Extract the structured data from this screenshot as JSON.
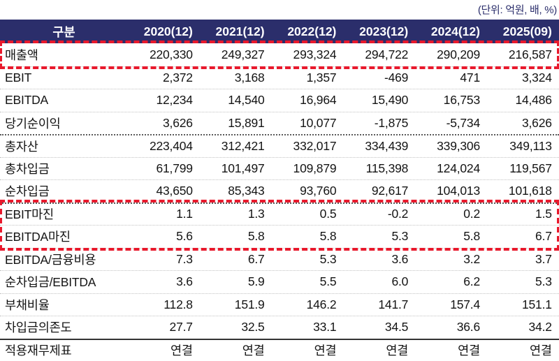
{
  "unit_label": "(단위: 억원, 배, %)",
  "colors": {
    "header_bg": "#2b2e6b",
    "header_text": "#ffffff",
    "highlight_red": "#e8192c",
    "body_text": "#141414"
  },
  "table": {
    "header": [
      "구분",
      "2020(12)",
      "2021(12)",
      "2022(12)",
      "2023(12)",
      "2024(12)",
      "2025(09)"
    ],
    "rows": [
      {
        "label": "매출액",
        "values": [
          "220,330",
          "249,327",
          "293,324",
          "294,722",
          "290,209",
          "216,587"
        ],
        "highlight": "box-1"
      },
      {
        "label": "EBIT",
        "values": [
          "2,372",
          "3,168",
          "1,357",
          "-469",
          "471",
          "3,324"
        ]
      },
      {
        "label": "EBITDA",
        "values": [
          "12,234",
          "14,540",
          "16,964",
          "15,490",
          "16,753",
          "14,486"
        ]
      },
      {
        "label": "당기순이익",
        "values": [
          "3,626",
          "15,891",
          "10,077",
          "-1,875",
          "-5,734",
          "3,626"
        ]
      },
      {
        "label": "총자산",
        "values": [
          "223,404",
          "312,421",
          "332,017",
          "334,439",
          "339,306",
          "349,113"
        ],
        "section": "dotted"
      },
      {
        "label": "총차입금",
        "values": [
          "61,799",
          "101,497",
          "109,879",
          "115,398",
          "124,024",
          "119,567"
        ]
      },
      {
        "label": "순차입금",
        "values": [
          "43,650",
          "85,343",
          "93,760",
          "92,617",
          "104,013",
          "101,618"
        ]
      },
      {
        "label": "EBIT마진",
        "values": [
          "1.1",
          "1.3",
          "0.5",
          "-0.2",
          "0.2",
          "1.5"
        ],
        "section": "dotted",
        "highlight": "box-2"
      },
      {
        "label": "EBITDA마진",
        "values": [
          "5.6",
          "5.8",
          "5.8",
          "5.3",
          "5.8",
          "6.7"
        ],
        "highlight": "box-2"
      },
      {
        "label": "EBITDA/금융비용",
        "values": [
          "7.3",
          "6.7",
          "5.3",
          "3.6",
          "3.2",
          "3.7"
        ]
      },
      {
        "label": "순차입금/EBITDA",
        "values": [
          "3.6",
          "5.9",
          "5.5",
          "6.0",
          "6.2",
          "5.3"
        ]
      },
      {
        "label": "부채비율",
        "values": [
          "112.8",
          "151.9",
          "146.2",
          "141.7",
          "157.4",
          "151.1"
        ]
      },
      {
        "label": "차입금의존도",
        "values": [
          "27.7",
          "32.5",
          "33.1",
          "34.5",
          "36.6",
          "34.2"
        ]
      },
      {
        "label": "적용재무제표",
        "values": [
          "연결",
          "연결",
          "연결",
          "연결",
          "연결",
          "연결"
        ],
        "section": "solid"
      }
    ]
  }
}
